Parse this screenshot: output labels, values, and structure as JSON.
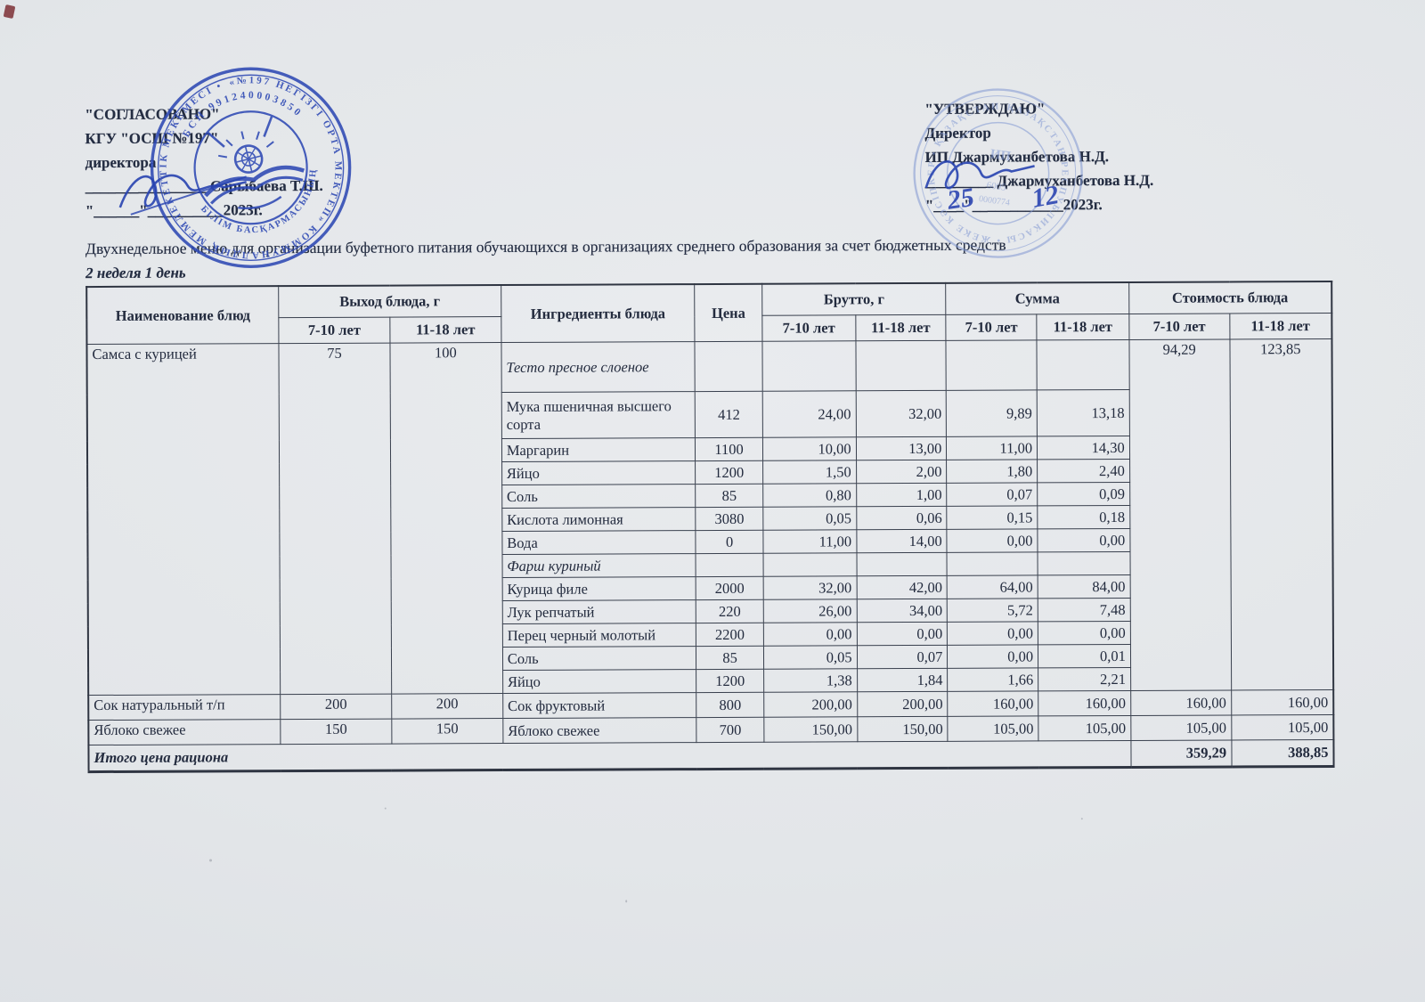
{
  "page": {
    "title": "Двухнедельное меню для организации буфетного питания обучающихся в организациях среднего образования за счет бюджетных средств",
    "subtitle": "2 неделя 1 день",
    "paper_color": "#e3e6e9",
    "ink_color": "#242d42",
    "stamp_blue": "#2e49b4",
    "stamp_light_blue": "#8097d2"
  },
  "approval_left": {
    "line1": "\"СОГЛАСОВАНО\"",
    "line2": "КГУ \"ОСШ №197\"",
    "line3": "директора",
    "line4_blank": "________________",
    "line4_name": "Сарыбаева Т.Ш.",
    "line5_prefix": "\"______\"",
    "line5_blank": "__________",
    "line5_year": "2023г."
  },
  "approval_right": {
    "line1": "\"УТВЕРЖДАЮ\"",
    "line2": "Директор",
    "line3": "ИП Джармуханбетова Н.Д.",
    "line4_blank": "_________",
    "line4_name": "Джармуханбетова Н.Д.",
    "line5_prefix": "\"____\"",
    "line5_blank": "____________",
    "line5_year": "2023г.",
    "handwritten_day": "25",
    "handwritten_month": "12"
  },
  "stamps": {
    "left": {
      "ring_text_outer": "«№197 НЕГІЗГІ ОРТА МЕКТЕП» КОММУНАЛДЫҚ МЕМЛЕКЕТТІК МЕКЕМЕСІ •",
      "ring_text_inner_top": "БСН 991240003850",
      "ring_text_inner_bottom": "БІЛІМ БАСҚАРМАСЫНЫҢ"
    },
    "right": {
      "ring_text": "ҚАЗАҚСТАН РЕСПУБЛИКАСЫ • ЖЕКЕ КӘСІПКЕР • ҚАЗАҚСТАН •",
      "center_line1": "ИП",
      "center_line2": "6005",
      "center_line3": "0000774"
    }
  },
  "table": {
    "header": {
      "name": "Наименование блюд",
      "output_group": "Выход блюда, г",
      "ingredients": "Ингредиенты блюда",
      "price": "Цена",
      "gross_group": "Брутто, г",
      "sum_group": "Сумма",
      "cost_group": "Стоимость блюда",
      "age1": "7-10 лет",
      "age2": "11-18 лет"
    },
    "dishes": [
      {
        "name": "Самса с курицей",
        "out710": "75",
        "out1118": "100",
        "cost710": "94,29",
        "cost1118": "123,85",
        "ingredients": [
          {
            "name": "Тесто пресное слоеное",
            "italic": true,
            "tall": true,
            "price": "",
            "g710": "",
            "g1118": "",
            "s710": "",
            "s1118": ""
          },
          {
            "name": "Мука пшеничная высшего сорта",
            "wrap": true,
            "price": "412",
            "g710": "24,00",
            "g1118": "32,00",
            "s710": "9,89",
            "s1118": "13,18"
          },
          {
            "name": "Маргарин",
            "price": "1100",
            "g710": "10,00",
            "g1118": "13,00",
            "s710": "11,00",
            "s1118": "14,30"
          },
          {
            "name": "Яйцо",
            "price": "1200",
            "g710": "1,50",
            "g1118": "2,00",
            "s710": "1,80",
            "s1118": "2,40"
          },
          {
            "name": "Соль",
            "price": "85",
            "g710": "0,80",
            "g1118": "1,00",
            "s710": "0,07",
            "s1118": "0,09"
          },
          {
            "name": "Кислота лимонная",
            "price": "3080",
            "g710": "0,05",
            "g1118": "0,06",
            "s710": "0,15",
            "s1118": "0,18"
          },
          {
            "name": "Вода",
            "price": "0",
            "g710": "11,00",
            "g1118": "14,00",
            "s710": "0,00",
            "s1118": "0,00"
          },
          {
            "name": "Фарш куриный",
            "italic": true,
            "price": "",
            "g710": "",
            "g1118": "",
            "s710": "",
            "s1118": ""
          },
          {
            "name": "Курица филе",
            "price": "2000",
            "g710": "32,00",
            "g1118": "42,00",
            "s710": "64,00",
            "s1118": "84,00"
          },
          {
            "name": "Лук репчатый",
            "price": "220",
            "g710": "26,00",
            "g1118": "34,00",
            "s710": "5,72",
            "s1118": "7,48"
          },
          {
            "name": "Перец черный молотый",
            "price": "2200",
            "g710": "0,00",
            "g1118": "0,00",
            "s710": "0,00",
            "s1118": "0,00"
          },
          {
            "name": "Соль",
            "price": "85",
            "g710": "0,05",
            "g1118": "0,07",
            "s710": "0,00",
            "s1118": "0,01"
          },
          {
            "name": "Яйцо",
            "price": "1200",
            "g710": "1,38",
            "g1118": "1,84",
            "s710": "1,66",
            "s1118": "2,21"
          }
        ]
      },
      {
        "name": "Сок натуральный т/п",
        "out710": "200",
        "out1118": "200",
        "cost710": "160,00",
        "cost1118": "160,00",
        "ingredients": [
          {
            "name": "Сок фруктовый",
            "price": "800",
            "g710": "200,00",
            "g1118": "200,00",
            "s710": "160,00",
            "s1118": "160,00"
          }
        ]
      },
      {
        "name": "Яблоко свежее",
        "out710": "150",
        "out1118": "150",
        "cost710": "105,00",
        "cost1118": "105,00",
        "ingredients": [
          {
            "name": "Яблоко свежее",
            "price": "700",
            "g710": "150,00",
            "g1118": "150,00",
            "s710": "105,00",
            "s1118": "105,00"
          }
        ]
      }
    ],
    "total": {
      "label": "Итого цена рациона",
      "cost710": "359,29",
      "cost1118": "388,85"
    }
  }
}
